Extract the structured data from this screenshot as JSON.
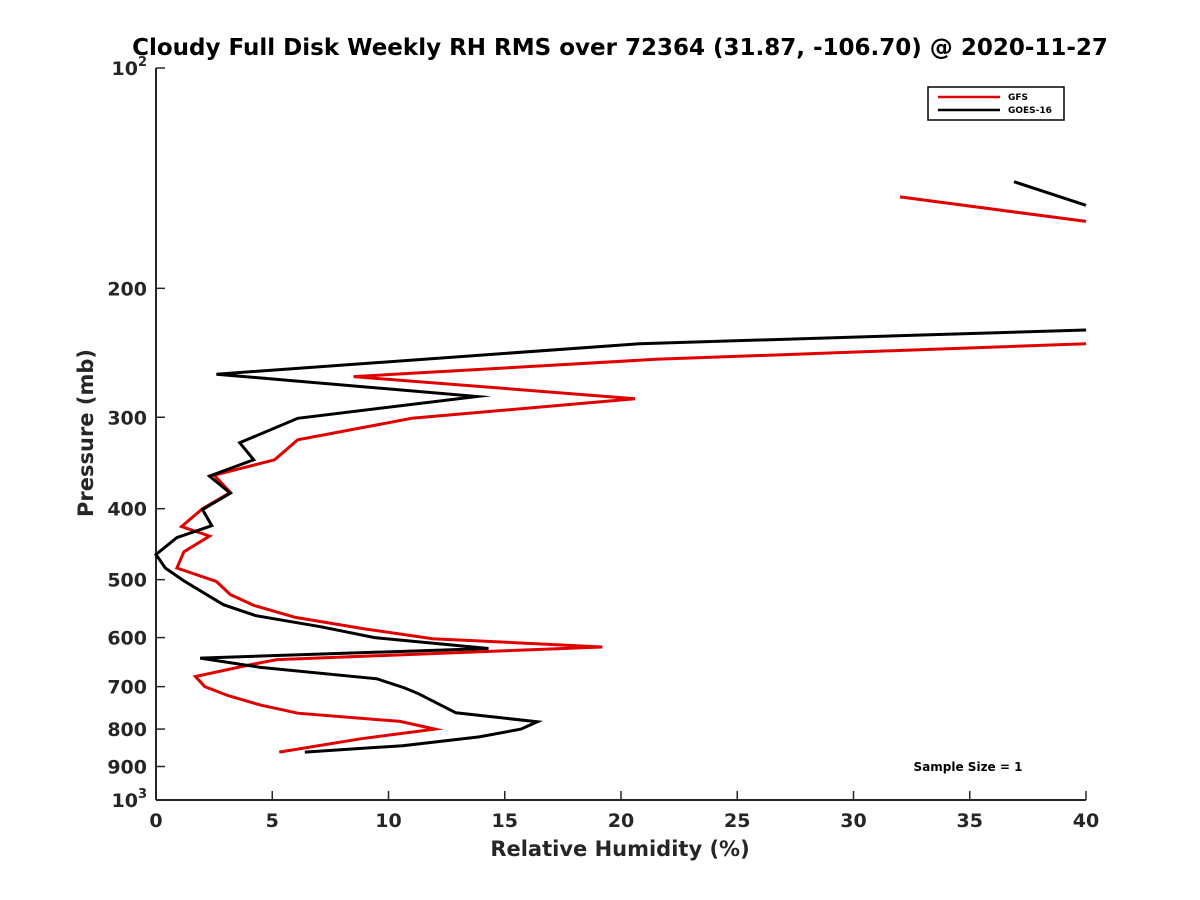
{
  "chart_data": {
    "type": "line",
    "title": "Cloudy Full Disk Weekly RH RMS over 72364 (31.87, -106.70) @ 2020-11-27",
    "xlabel": "Relative Humidity (%)",
    "ylabel": "Pressure (mb)",
    "xlim": [
      0,
      40
    ],
    "ylim": [
      100,
      1000
    ],
    "y_scale": "log",
    "y_reversed": true,
    "xticks": [
      0,
      5,
      10,
      15,
      20,
      25,
      30,
      35,
      40
    ],
    "xtick_labels": [
      "0",
      "5",
      "10",
      "15",
      "20",
      "25",
      "30",
      "35",
      "40"
    ],
    "yticks": [
      100,
      200,
      300,
      400,
      500,
      600,
      700,
      800,
      900,
      1000
    ],
    "ytick_labels": [
      {
        "base": "10",
        "exp": "2"
      },
      {
        "text": "200"
      },
      {
        "text": "300"
      },
      {
        "text": "400"
      },
      {
        "text": "500"
      },
      {
        "text": "600"
      },
      {
        "text": "700"
      },
      {
        "text": "800"
      },
      {
        "text": "900"
      },
      {
        "base": "10",
        "exp": "3"
      }
    ],
    "grid": false,
    "legend_position": "top-right",
    "annotation": "Sample Size = 1",
    "series": [
      {
        "name": "GFS",
        "color": "#e00000",
        "segments": [
          [
            [
              32.0,
              150
            ],
            [
              40.0,
              162
            ]
          ],
          [
            [
              40.0,
              238
            ],
            [
              21.5,
              250
            ],
            [
              8.5,
              264
            ],
            [
              20.6,
              283
            ],
            [
              11.0,
              301
            ],
            [
              6.1,
              322
            ],
            [
              5.1,
              343
            ],
            [
              2.5,
              360
            ],
            [
              3.2,
              380
            ],
            [
              2.0,
              400
            ],
            [
              1.1,
              423
            ],
            [
              2.3,
              436
            ],
            [
              1.2,
              458
            ],
            [
              0.9,
              482
            ],
            [
              2.6,
              503
            ],
            [
              3.2,
              524
            ],
            [
              4.2,
              542
            ],
            [
              6.0,
              563
            ],
            [
              9.0,
              584
            ],
            [
              11.9,
              602
            ],
            [
              19.2,
              618
            ],
            [
              5.2,
              643
            ],
            [
              4.0,
              654
            ],
            [
              1.7,
              678
            ],
            [
              2.1,
              700
            ],
            [
              3.1,
              720
            ],
            [
              4.5,
              742
            ],
            [
              6.1,
              761
            ],
            [
              10.5,
              781
            ],
            [
              12.0,
              800
            ],
            [
              8.8,
              825
            ],
            [
              5.3,
              860
            ]
          ]
        ]
      },
      {
        "name": "GOES-16",
        "color": "#000000",
        "segments": [
          [
            [
              36.9,
              143
            ],
            [
              40.0,
              154
            ]
          ],
          [
            [
              40.0,
              228
            ],
            [
              20.8,
              238
            ],
            [
              2.6,
              262
            ],
            [
              13.8,
              281
            ],
            [
              6.1,
              301
            ],
            [
              3.6,
              325
            ],
            [
              4.2,
              343
            ],
            [
              2.3,
              361
            ],
            [
              3.2,
              381
            ],
            [
              2.0,
              401
            ],
            [
              2.4,
              422
            ],
            [
              0.9,
              438
            ],
            [
              0.0,
              462
            ],
            [
              0.4,
              482
            ],
            [
              1.2,
              502
            ],
            [
              2.9,
              541
            ],
            [
              4.3,
              560
            ],
            [
              7.1,
              580
            ],
            [
              9.4,
              600
            ],
            [
              14.3,
              621
            ],
            [
              1.9,
              640
            ],
            [
              4.5,
              659
            ],
            [
              9.5,
              683
            ],
            [
              10.7,
              703
            ],
            [
              11.3,
              716
            ],
            [
              12.9,
              760
            ],
            [
              16.4,
              782
            ],
            [
              15.7,
              800
            ],
            [
              13.9,
              820
            ],
            [
              10.6,
              843
            ],
            [
              6.4,
              860
            ]
          ]
        ]
      }
    ]
  }
}
